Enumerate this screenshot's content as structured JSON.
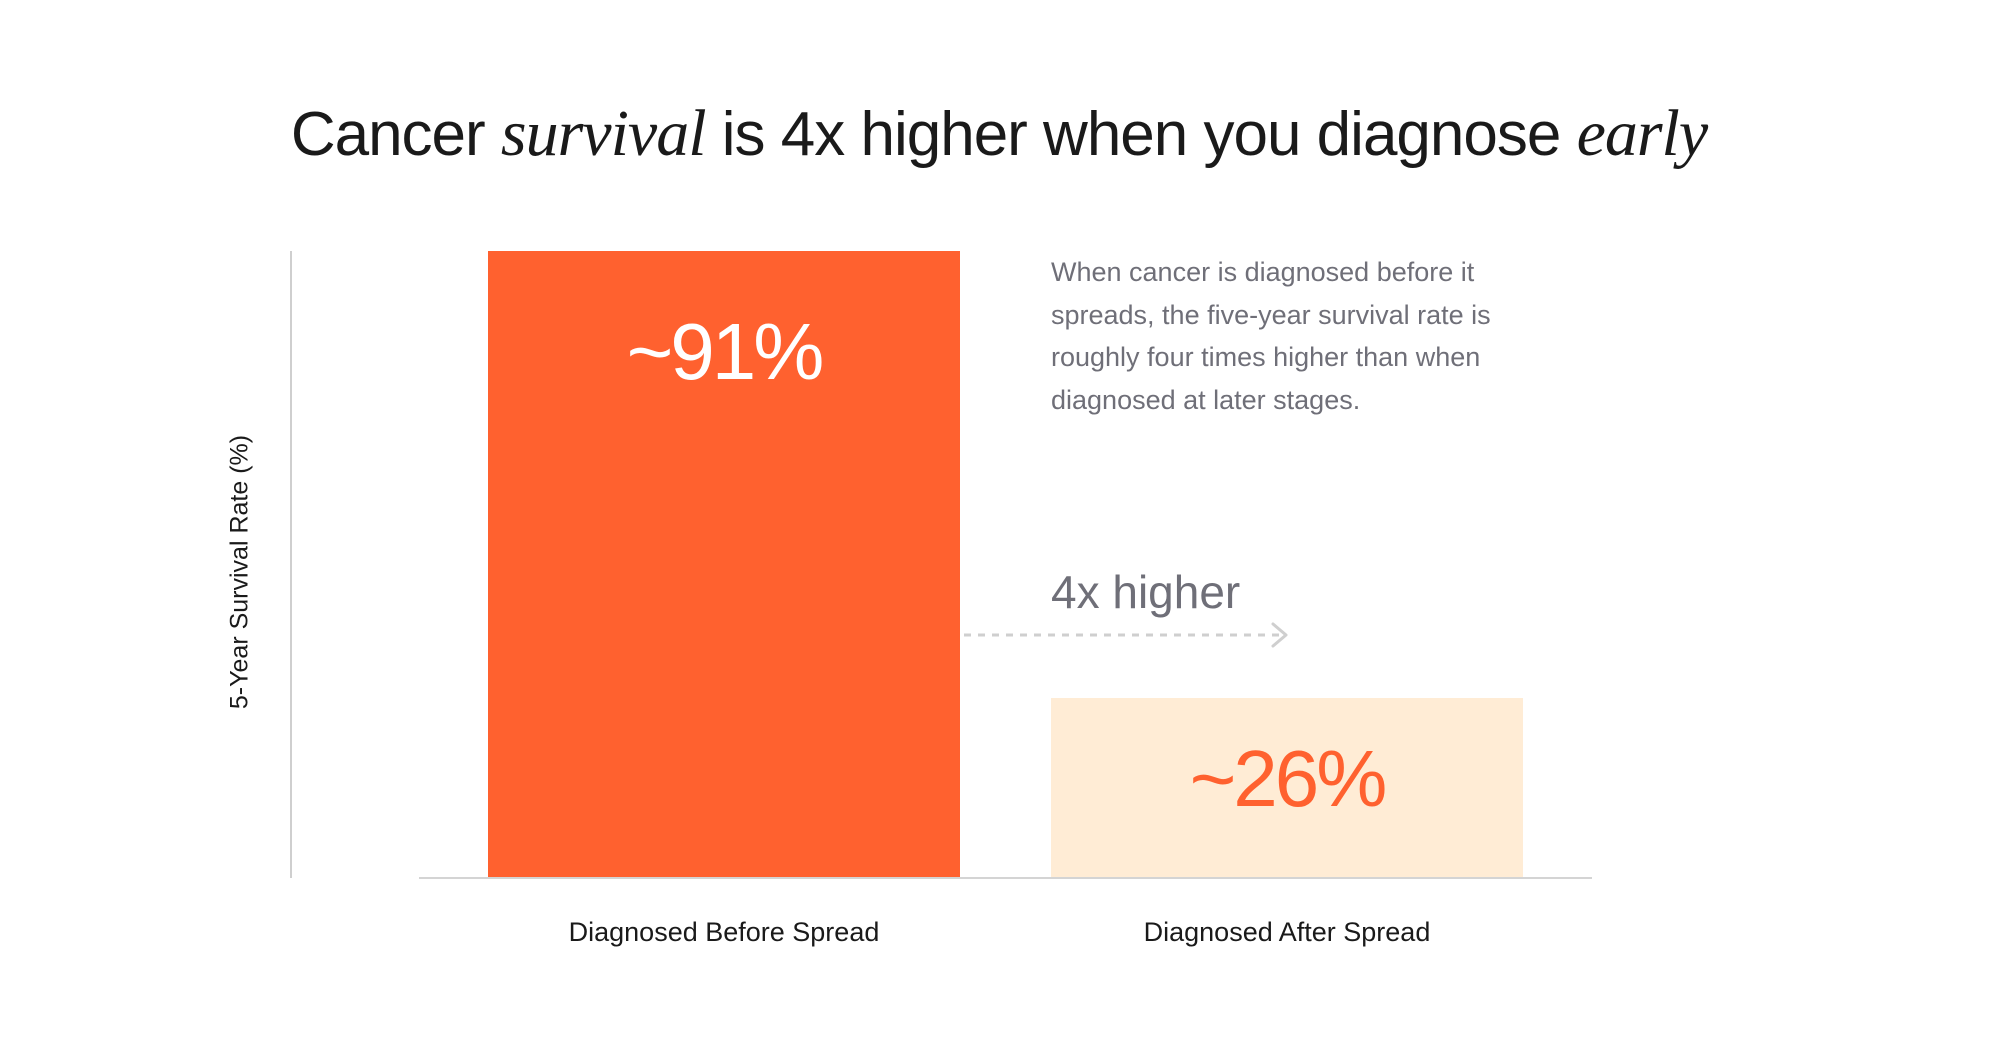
{
  "title": {
    "part1": "Cancer ",
    "part2": "survival",
    "part3": " is 4x higher when you diagnose ",
    "part4": "early"
  },
  "description": "When cancer is diagnosed before it spreads, the five-year survival rate is roughly four times higher than when diagnosed at later stages.",
  "annotation": {
    "label": "4x higher",
    "arrow_color": "#cfcfcf"
  },
  "colors": {
    "primary_bar": "#ff612f",
    "secondary_bar": "#ffecd5",
    "primary_label": "#ffffff",
    "secondary_label": "#ff612f"
  },
  "chart_data": {
    "type": "bar",
    "title": "Cancer survival is 4x higher when you diagnose early",
    "categories": [
      "Diagnosed Before Spread",
      "Diagnosed After Spread"
    ],
    "values": [
      91,
      26
    ],
    "value_labels": [
      "~91%",
      "~26%"
    ],
    "ylabel": "5-Year Survival Rate (%)",
    "xlabel": "",
    "ylim": [
      0,
      91
    ],
    "grid": false,
    "legend": "none"
  }
}
